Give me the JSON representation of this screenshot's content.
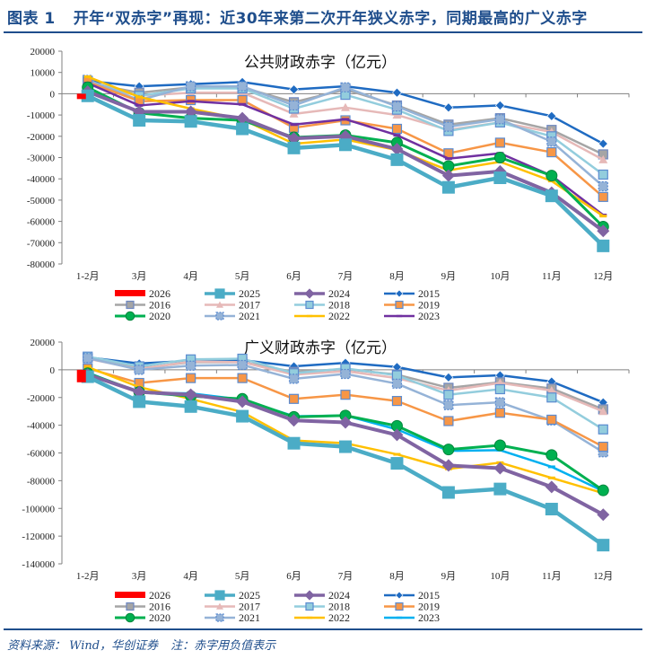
{
  "figure": {
    "label": "图表 1",
    "title": "开年“双赤字”再现：近30年来第二次开年狭义赤字，同期最高的广义赤字"
  },
  "source": {
    "text": "资料来源： Wind，华创证券",
    "note": "注：赤字用负值表示"
  },
  "series_styles": {
    "2026": {
      "color": "#ff0000",
      "marker": "bar"
    },
    "2025": {
      "color": "#4bacc6",
      "marker": "square-large"
    },
    "2024": {
      "color": "#8064a2",
      "marker": "diamond"
    },
    "2015": {
      "color": "#1f6bc2",
      "marker": "diamond-small"
    },
    "2016": {
      "color": "#a5a5a5",
      "marker": "square"
    },
    "2017": {
      "color": "#e6b9b8",
      "marker": "triangle"
    },
    "2018": {
      "color": "#93cddd",
      "marker": "square-x"
    },
    "2019": {
      "color": "#f79646",
      "marker": "square-x"
    },
    "2020": {
      "color": "#00b050",
      "marker": "circle"
    },
    "2021": {
      "color": "#95b3d7",
      "marker": "square-dotted"
    },
    "2022": {
      "color": "#ffc000",
      "marker": "dash"
    },
    "2023_top": {
      "color": "#7030a0",
      "marker": "dash"
    },
    "2023_bottom": {
      "color": "#00b0f0",
      "marker": "dash"
    }
  },
  "chart_data": [
    {
      "type": "line",
      "title": "公共财政赤字（亿元）",
      "xlabel": "",
      "ylabel": "",
      "categories": [
        "1-2月",
        "3月",
        "4月",
        "5月",
        "6月",
        "7月",
        "8月",
        "9月",
        "10月",
        "11月",
        "12月"
      ],
      "ylim": [
        -80000,
        20000
      ],
      "yticks": [
        "20000",
        "10000",
        "0",
        "-10000",
        "-20000",
        "-30000",
        "-40000",
        "-50000",
        "-60000",
        "-70000",
        "-80000"
      ],
      "ytick_values": [
        20000,
        10000,
        0,
        -10000,
        -20000,
        -30000,
        -40000,
        -50000,
        -60000,
        -70000,
        -80000
      ],
      "legend": [
        "2026",
        "2025",
        "2024",
        "2015",
        "2016",
        "2017",
        "2018",
        "2019",
        "2020",
        "2021",
        "2022",
        "2023"
      ],
      "legend_position": "bottom",
      "grid": false,
      "series": [
        {
          "name": "2015",
          "style": "2015",
          "values": [
            6000,
            3500,
            4500,
            5500,
            2000,
            3500,
            500,
            -6500,
            -5500,
            -10500,
            -23500
          ]
        },
        {
          "name": "2016",
          "style": "2016",
          "values": [
            5000,
            500,
            3000,
            3000,
            -4000,
            2000,
            -5500,
            -14500,
            -11500,
            -17000,
            -28500
          ]
        },
        {
          "name": "2017",
          "style": "2017",
          "values": [
            4500,
            -1000,
            500,
            500,
            -9500,
            -6500,
            -10000,
            -17000,
            -13500,
            -18000,
            -31000
          ]
        },
        {
          "name": "2018",
          "style": "2018",
          "values": [
            6000,
            -1000,
            2500,
            2500,
            -7000,
            -500,
            -7500,
            -17500,
            -13500,
            -20000,
            -38000
          ]
        },
        {
          "name": "2021",
          "style": "2021",
          "values": [
            6500,
            -3000,
            3500,
            3500,
            -5500,
            3000,
            -6000,
            -15500,
            -12000,
            -22500,
            -43500
          ]
        },
        {
          "name": "2019",
          "style": "2019",
          "values": [
            5500,
            -3500,
            -3000,
            -3000,
            -16000,
            -12500,
            -16500,
            -28000,
            -23000,
            -27500,
            -48500
          ]
        },
        {
          "name": "2023",
          "style": "2023_top",
          "values": [
            5000,
            -5500,
            -3500,
            -5000,
            -14500,
            -12000,
            -19500,
            -30500,
            -28000,
            -38500,
            -57000
          ]
        },
        {
          "name": "2022",
          "style": "2022",
          "values": [
            8000,
            -1500,
            -7000,
            -12000,
            -23500,
            -21500,
            -26500,
            -36000,
            -32000,
            -41000,
            -57500
          ]
        },
        {
          "name": "2020",
          "style": "2020",
          "values": [
            3000,
            -9000,
            -11500,
            -12500,
            -20500,
            -19500,
            -23000,
            -34000,
            -30000,
            -38500,
            -62500
          ]
        },
        {
          "name": "2024",
          "style": "2024",
          "values": [
            1000,
            -8500,
            -8500,
            -11500,
            -21000,
            -20000,
            -26000,
            -38500,
            -36500,
            -46500,
            -64500
          ]
        },
        {
          "name": "2025",
          "style": "2025",
          "values": [
            -1000,
            -12500,
            -13000,
            -16500,
            -25500,
            -24000,
            -31000,
            -44000,
            -39500,
            -48000,
            -71500
          ]
        },
        {
          "name": "2026",
          "style": "2026",
          "type": "bar",
          "values": [
            -2500,
            null,
            null,
            null,
            null,
            null,
            null,
            null,
            null,
            null,
            null
          ]
        }
      ]
    },
    {
      "type": "line",
      "title": "广义财政赤字（亿元）",
      "xlabel": "",
      "ylabel": "",
      "categories": [
        "1-2月",
        "3月",
        "4月",
        "5月",
        "6月",
        "7月",
        "8月",
        "9月",
        "10月",
        "11月",
        "12月"
      ],
      "ylim": [
        -140000,
        20000
      ],
      "yticks": [
        "20000",
        "0",
        "-20000",
        "-40000",
        "-60000",
        "-80000",
        "-100000",
        "-120000",
        "-140000"
      ],
      "ytick_values": [
        20000,
        0,
        -20000,
        -40000,
        -60000,
        -80000,
        -100000,
        -120000,
        -140000
      ],
      "legend": [
        "2026",
        "2025",
        "2024",
        "2015",
        "2016",
        "2017",
        "2018",
        "2019",
        "2020",
        "2021",
        "2022",
        "2023"
      ],
      "legend_position": "bottom",
      "grid": false,
      "series": [
        {
          "name": "2015",
          "style": "2015",
          "values": [
            9000,
            4500,
            6500,
            7000,
            2500,
            5000,
            2000,
            -5500,
            -4000,
            -8500,
            -23500
          ]
        },
        {
          "name": "2016",
          "style": "2016",
          "values": [
            8500,
            1000,
            5500,
            5500,
            -1500,
            500,
            -3500,
            -13000,
            -9000,
            -13500,
            -28500
          ]
        },
        {
          "name": "2017",
          "style": "2017",
          "values": [
            8000,
            500,
            6000,
            5500,
            -3500,
            -1000,
            -6000,
            -15000,
            -9500,
            -15000,
            -30000
          ]
        },
        {
          "name": "2018",
          "style": "2018",
          "values": [
            9500,
            2500,
            7500,
            8000,
            -2500,
            1000,
            -4000,
            -18000,
            -14000,
            -20000,
            -43000
          ]
        },
        {
          "name": "2021",
          "style": "2021",
          "values": [
            8500,
            0,
            3000,
            3500,
            -6500,
            -3000,
            -10000,
            -25500,
            -23500,
            -36500,
            -59500
          ]
        },
        {
          "name": "2019",
          "style": "2019",
          "values": [
            1000,
            -9500,
            -6000,
            -6000,
            -21000,
            -18000,
            -22500,
            -37000,
            -31000,
            -36000,
            -55500
          ]
        },
        {
          "name": "2022",
          "style": "2022",
          "values": [
            2000,
            -12500,
            -21000,
            -30500,
            -51000,
            -53000,
            -61000,
            -71500,
            -67000,
            -78000,
            -89000
          ]
        },
        {
          "name": "2023",
          "style": "2023_bottom",
          "values": [
            -2000,
            -16500,
            -17000,
            -21500,
            -33500,
            -33000,
            -43000,
            -58500,
            -58000,
            -70000,
            -87500
          ]
        },
        {
          "name": "2020",
          "style": "2020",
          "values": [
            -2500,
            -16000,
            -19000,
            -21000,
            -34000,
            -33000,
            -40500,
            -57500,
            -54500,
            -61500,
            -87000
          ]
        },
        {
          "name": "2024",
          "style": "2024",
          "values": [
            -3500,
            -16000,
            -18000,
            -23000,
            -36500,
            -38000,
            -47000,
            -69000,
            -71000,
            -84500,
            -104500
          ]
        },
        {
          "name": "2025",
          "style": "2025",
          "values": [
            -5000,
            -23000,
            -26500,
            -33500,
            -53000,
            -55500,
            -67500,
            -88500,
            -86000,
            -100500,
            -126500
          ]
        },
        {
          "name": "2026",
          "style": "2026",
          "type": "bar",
          "values": [
            -9000,
            null,
            null,
            null,
            null,
            null,
            null,
            null,
            null,
            null,
            null
          ]
        }
      ]
    }
  ]
}
